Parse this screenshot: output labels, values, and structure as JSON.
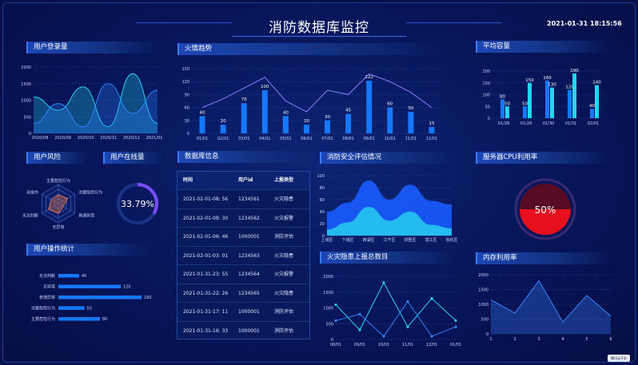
{
  "page": {
    "title": "消防数据库监控",
    "datetime": "2021-01-31 18:15:56",
    "watermark": "腾讯云开发"
  },
  "panels": {
    "login": {
      "title": "用户登录量",
      "y_ticks": [
        "2000",
        "1500",
        "1000",
        "500",
        "0"
      ],
      "x_ticks": [
        "2020/08",
        "2020/09",
        "2020/10",
        "2020/11",
        "2020/12",
        "2021/01"
      ]
    },
    "fire": {
      "title": "火情趋势",
      "y_ticks": [
        "150",
        "120",
        "90",
        "60",
        "30",
        "0"
      ]
    },
    "capacity": {
      "title": "平均容量",
      "y_ticks": [
        "200",
        "150",
        "100",
        "50",
        "0"
      ]
    },
    "risk": {
      "title": "用户风险",
      "labels": [
        "主要危险行为",
        "次要危险行为",
        "普通异常",
        "无异常",
        "无法判断",
        "无操作"
      ]
    },
    "online": {
      "title": "用户在线量",
      "value": "33.79%",
      "fraction": 0.3379
    },
    "dbinfo": {
      "title": "数据库信息",
      "headers": [
        "时间",
        "用户id",
        "上报类型"
      ],
      "rows": [
        [
          "2021-02-01-08:  56",
          "1234561",
          "火灾隐患"
        ],
        [
          "2021-02-01-08:  30",
          "1234562",
          "火灾报警"
        ],
        [
          "2021-02-01-06:  46",
          "1000001",
          "消防评估"
        ],
        [
          "2021-02-01-03:  01",
          "1234563",
          "火灾隐患"
        ],
        [
          "2021-01-31-23:  55",
          "1234564",
          "火灾报警"
        ],
        [
          "2021-01-31-22:  26",
          "1234565",
          "火灾隐患"
        ],
        [
          "2021-01-31-17:  11",
          "1000001",
          "消防评估"
        ],
        [
          "2021-01-31-16:  33",
          "1000001",
          "消防评估"
        ]
      ]
    },
    "safety": {
      "title": "消防安全评估情况",
      "y_ticks": [
        "100",
        "80",
        "60",
        "40",
        "20",
        "0"
      ],
      "x_ticks": [
        "上城区",
        "下城区",
        "西湖区",
        "江干区",
        "拱墅区",
        "滨江区",
        "余杭区"
      ]
    },
    "cpu": {
      "title": "服务器CPU利用率",
      "value": "50%",
      "fraction": 0.5
    },
    "ops": {
      "title": "用户操作统计",
      "categories": [
        "无法判断",
        "无异常",
        "普通异常",
        "次要危险行为",
        "主要危险行为"
      ],
      "values": [
        40,
        120,
        160,
        50,
        80
      ]
    },
    "hazard": {
      "title": "火灾隐患上报总数目",
      "y_ticks": [
        "2000",
        "1500",
        "1000",
        "500",
        "0"
      ],
      "x_ticks": [
        "08/01",
        "09/01",
        "10/01",
        "11/01",
        "12/01",
        "01/01"
      ]
    },
    "memory": {
      "title": "内存利用率",
      "y_ticks": [
        "2000",
        "1500",
        "1000",
        "500",
        "0"
      ],
      "x_ticks": [
        "1",
        "2",
        "3",
        "4",
        "5",
        "6"
      ]
    }
  },
  "chart_data": [
    {
      "type": "area",
      "title": "用户登录量",
      "x": [
        "2020/08",
        "2020/09",
        "2020/10",
        "2020/11",
        "2020/12",
        "2021/01"
      ],
      "ylim": [
        0,
        2000
      ],
      "series": [
        {
          "values": [
            1100,
            700,
            1400,
            200,
            1800,
            300
          ]
        },
        {
          "values": [
            300,
            900,
            200,
            1500,
            600,
            1300
          ]
        }
      ]
    },
    {
      "type": "bar",
      "title": "火情趋势",
      "categories": [
        "01/01",
        "02/01",
        "03/01",
        "04/01",
        "05/01",
        "06/01",
        "07/01",
        "08/01",
        "09/01",
        "10/01",
        "11/01",
        "12/01"
      ],
      "ylim": [
        0,
        150
      ],
      "series": [
        {
          "values": [
            40,
            20,
            70,
            100,
            40,
            20,
            30,
            45,
            122,
            60,
            50,
            15
          ]
        },
        {
          "values": [
            60,
            80,
            105,
            130,
            75,
            50,
            100,
            90,
            138,
            120,
            95,
            60
          ]
        }
      ]
    },
    {
      "type": "bar",
      "title": "平均容量",
      "categories": [
        "01/28",
        "01/29",
        "01/30",
        "01/31",
        "02/01"
      ],
      "ylim": [
        0,
        200
      ],
      "series": [
        {
          "values": [
            80,
            50,
            160,
            120,
            40
          ]
        },
        {
          "values": [
            50,
            150,
            130,
            190,
            140
          ]
        }
      ]
    },
    {
      "type": "area",
      "title": "消防安全评估情况",
      "categories": [
        "上城区",
        "下城区",
        "西湖区",
        "江干区",
        "拱墅区",
        "滨江区",
        "余杭区"
      ],
      "ylim": [
        0,
        100
      ],
      "series": [
        {
          "values": [
            40,
            55,
            92,
            60,
            85,
            58,
            52
          ]
        },
        {
          "values": [
            10,
            22,
            48,
            25,
            40,
            18,
            12
          ]
        }
      ]
    },
    {
      "type": "bar",
      "title": "用户操作统计",
      "categories": [
        "无法判断",
        "无异常",
        "普通异常",
        "次要危险行为",
        "主要危险行为"
      ],
      "values": [
        40,
        120,
        160,
        50,
        80
      ]
    },
    {
      "type": "line",
      "title": "火灾隐患上报总数目",
      "x": [
        "08/01",
        "09/01",
        "10/01",
        "11/01",
        "12/01",
        "01/01"
      ],
      "ylim": [
        0,
        2000
      ],
      "series": [
        {
          "values": [
            1100,
            300,
            1800,
            400,
            1300,
            600
          ]
        },
        {
          "values": [
            600,
            800,
            100,
            1200,
            100,
            400
          ]
        }
      ]
    },
    {
      "type": "area",
      "title": "内存利用率",
      "x": [
        "1",
        "2",
        "3",
        "4",
        "5",
        "6"
      ],
      "ylim": [
        0,
        2000
      ],
      "series": [
        {
          "values": [
            1150,
            700,
            1800,
            400,
            1300,
            600
          ]
        }
      ]
    }
  ],
  "colors": {
    "accent": "#3b7cff",
    "cyan": "#25d6f0",
    "blue": "#1677ff",
    "cpu_red": "#e8101e",
    "gauge": "#7b4dff"
  }
}
